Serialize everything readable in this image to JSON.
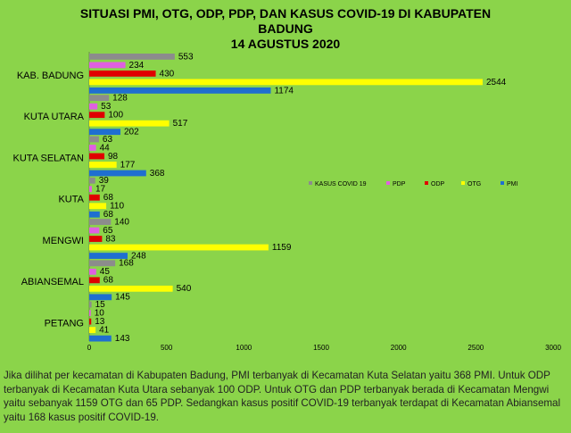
{
  "chart_data": {
    "type": "bar",
    "orientation": "horizontal",
    "title_lines": [
      "SITUASI PMI, OTG, ODP, PDP, DAN KASUS COVID-19 DI KABUPATEN",
      "BADUNG",
      "14 AGUSTUS 2020"
    ],
    "categories": [
      "KAB. BADUNG",
      "KUTA UTARA",
      "KUTA SELATAN",
      "KUTA",
      "MENGWI",
      "ABIANSEMAL",
      "PETANG"
    ],
    "series": [
      {
        "name": "KASUS COVID 19",
        "color": "#8c8c8c",
        "values": [
          553,
          128,
          63,
          39,
          140,
          168,
          15
        ]
      },
      {
        "name": "PDP",
        "color": "#e060e0",
        "values": [
          234,
          53,
          44,
          17,
          65,
          45,
          10
        ]
      },
      {
        "name": "ODP",
        "color": "#e00000",
        "values": [
          430,
          100,
          98,
          68,
          83,
          68,
          13
        ]
      },
      {
        "name": "OTG",
        "color": "#ffff00",
        "values": [
          2544,
          517,
          177,
          110,
          1159,
          540,
          41
        ]
      },
      {
        "name": "PMI",
        "color": "#1f6fd0",
        "values": [
          1174,
          202,
          368,
          68,
          248,
          145,
          143
        ]
      }
    ],
    "xlim": [
      0,
      3000
    ],
    "xticks": [
      0,
      500,
      1000,
      1500,
      2000,
      2500,
      3000
    ],
    "grid": false,
    "legend_position": "right-middle"
  },
  "footer_text": "Jika dilihat per kecamatan di Kabupaten Badung, PMI terbanyak di Kecamatan Kuta Selatan yaitu 368 PMI. Untuk ODP terbanyak di Kecamatan Kuta Utara sebanyak 100 ODP. Untuk OTG dan PDP terbanyak berada di Kecamatan Mengwi yaitu sebanyak 1159 OTG dan 65 PDP. Sedangkan  kasus positif COVID-19 terbanyak terdapat di Kecamatan Abiansemal yaitu 168 kasus positif COVID-19."
}
